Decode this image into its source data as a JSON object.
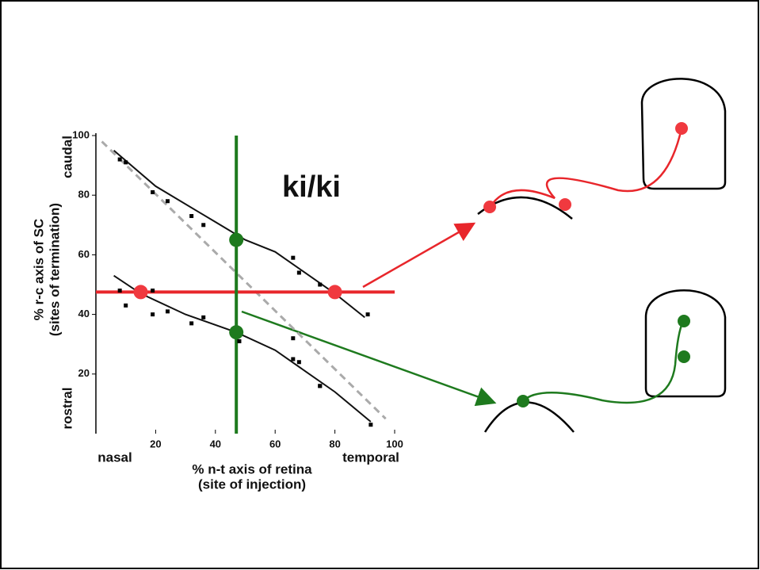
{
  "chart_data": {
    "type": "scatter",
    "title": "ki/ki",
    "xlabel": [
      "% n-t axis of retina",
      "(site of injection)"
    ],
    "ylabel": [
      "% r-c axis of SC",
      "(sites of termination)"
    ],
    "x_annotations": [
      "nasal",
      "temporal"
    ],
    "y_annotations": [
      "caudal",
      "rostral"
    ],
    "xlim": [
      0,
      100
    ],
    "ylim": [
      0,
      100
    ],
    "xticks": [
      20,
      40,
      60,
      80,
      100
    ],
    "yticks": [
      20,
      40,
      60,
      80,
      100
    ],
    "grid": false,
    "points": {
      "color": "#000000",
      "x": [
        8,
        10,
        19,
        24,
        32,
        36,
        66,
        68,
        75,
        91,
        8,
        10,
        19,
        19,
        24,
        32,
        36,
        48,
        66,
        66,
        68,
        75,
        75,
        92
      ],
      "values": [
        92,
        91,
        81,
        78,
        73,
        70,
        59,
        54,
        50,
        40,
        48,
        43,
        48,
        40,
        41,
        37,
        39,
        31,
        32,
        25,
        24,
        16,
        16,
        3
      ]
    },
    "curves": [
      {
        "color": "#111111",
        "dash": false,
        "x": [
          6,
          20,
          40,
          50,
          60,
          70,
          80,
          90
        ],
        "values": [
          95,
          83,
          71,
          65,
          61,
          54,
          47,
          39
        ]
      },
      {
        "color": "#111111",
        "dash": false,
        "x": [
          6,
          15,
          30,
          47,
          60,
          70,
          80,
          92
        ],
        "values": [
          53,
          47,
          40,
          34,
          28,
          21,
          14,
          4
        ]
      },
      {
        "color": "#aaaaaa",
        "dash": true,
        "x": [
          2,
          97
        ],
        "values": [
          98,
          5
        ]
      }
    ],
    "hline": {
      "value": 47.5,
      "color": "#e8262b"
    },
    "vline": {
      "value": 47,
      "color": "#1e7a1e"
    },
    "markers": {
      "x": [
        15,
        80,
        47,
        47
      ],
      "values": [
        47.5,
        47.5,
        65,
        34
      ],
      "colors": [
        "#f0393f",
        "#f0393f",
        "#1e7a1e",
        "#1e7a1e"
      ]
    }
  }
}
